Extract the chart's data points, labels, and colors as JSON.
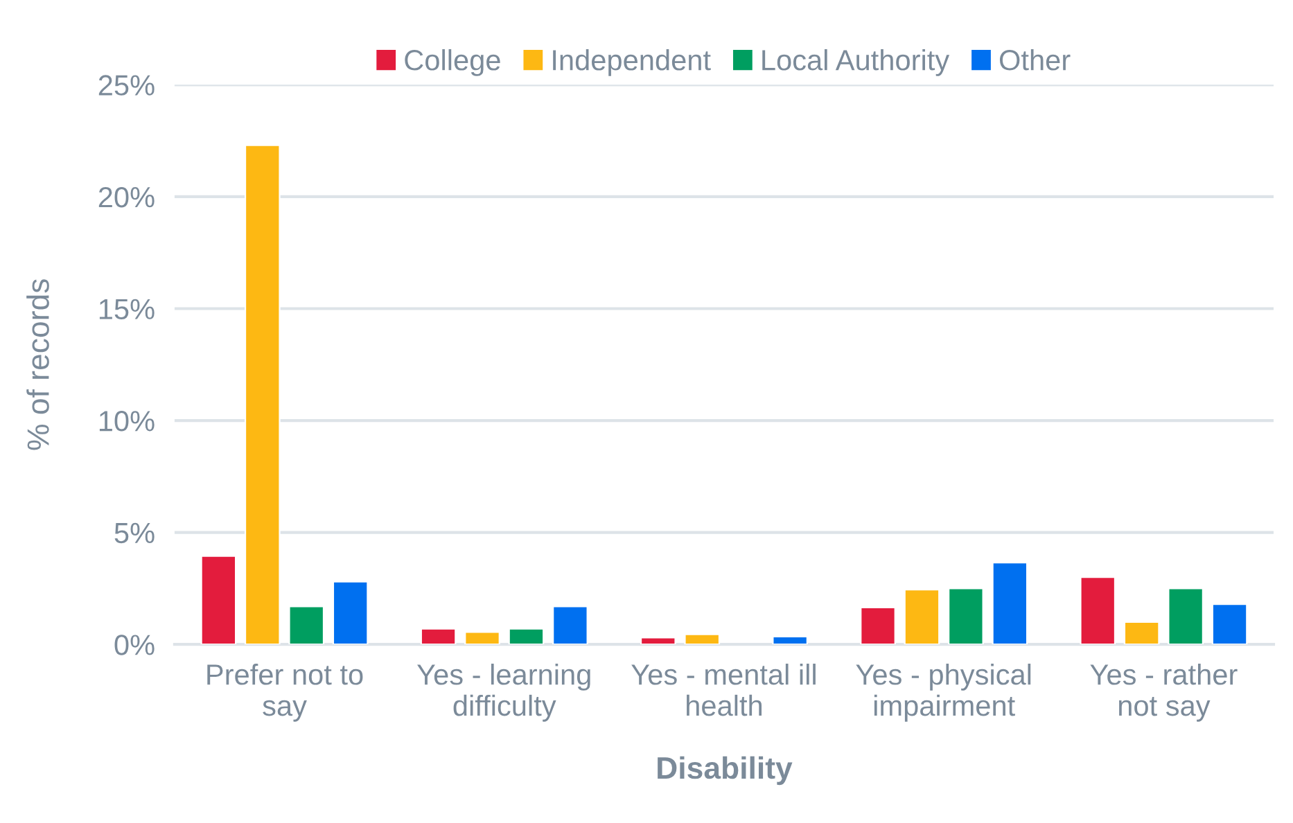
{
  "chart_data": {
    "type": "bar",
    "xlabel": "Disability",
    "ylabel": "% of records",
    "categories": [
      "Prefer not to\nsay",
      "Yes - learning\ndifficulty",
      "Yes - mental ill\nhealth",
      "Yes - physical\nimpairment",
      "Yes - rather\nnot say"
    ],
    "series": [
      {
        "name": "College",
        "color": "#e31c3d",
        "values": [
          3.95,
          0.7,
          0.3,
          1.65,
          3.0
        ]
      },
      {
        "name": "Independent",
        "color": "#fdb813",
        "values": [
          22.3,
          0.55,
          0.45,
          2.45,
          1.0
        ]
      },
      {
        "name": "Local Authority",
        "color": "#009e60",
        "values": [
          1.7,
          0.7,
          null,
          2.5,
          2.5
        ]
      },
      {
        "name": "Other",
        "color": "#0070f0",
        "values": [
          2.8,
          1.7,
          0.35,
          3.65,
          1.8
        ]
      }
    ],
    "ylim": [
      0,
      25
    ],
    "yticks": [
      {
        "value": 0,
        "label": "0%"
      },
      {
        "value": 5,
        "label": "5%"
      },
      {
        "value": 10,
        "label": "10%"
      },
      {
        "value": 15,
        "label": "15%"
      },
      {
        "value": 20,
        "label": "20%"
      },
      {
        "value": 25,
        "label": "25%"
      }
    ],
    "grid": "y",
    "legend": "top"
  }
}
